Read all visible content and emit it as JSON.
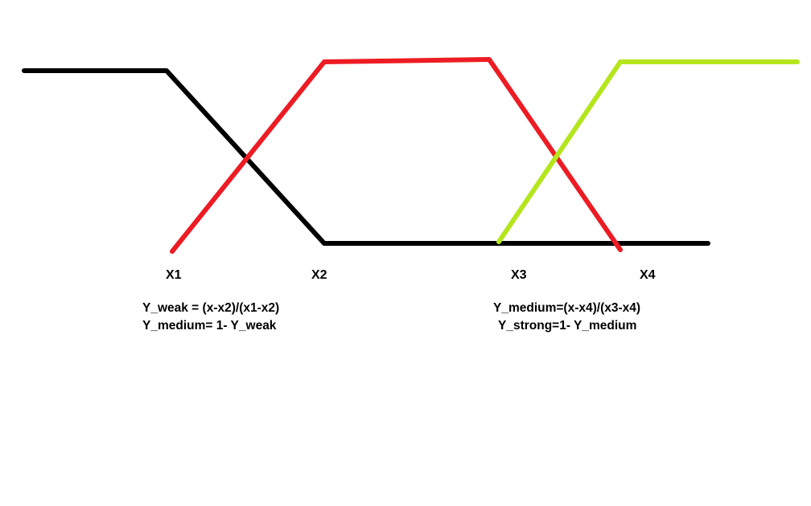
{
  "labels": {
    "x1": "X1",
    "x2": "X2",
    "x3": "X3",
    "x4": "X4"
  },
  "formulas": {
    "left_line1": "Y_weak = (x-x2)/(x1-x2)",
    "left_line2": "Y_medium= 1- Y_weak",
    "right_line1": "Y_medium=(x-x4)/(x3-x4)",
    "right_line2": "Y_strong=1- Y_medium"
  },
  "colors": {
    "weak": "#000000",
    "medium": "#ed1c24",
    "strong": "#b5e61d"
  }
}
